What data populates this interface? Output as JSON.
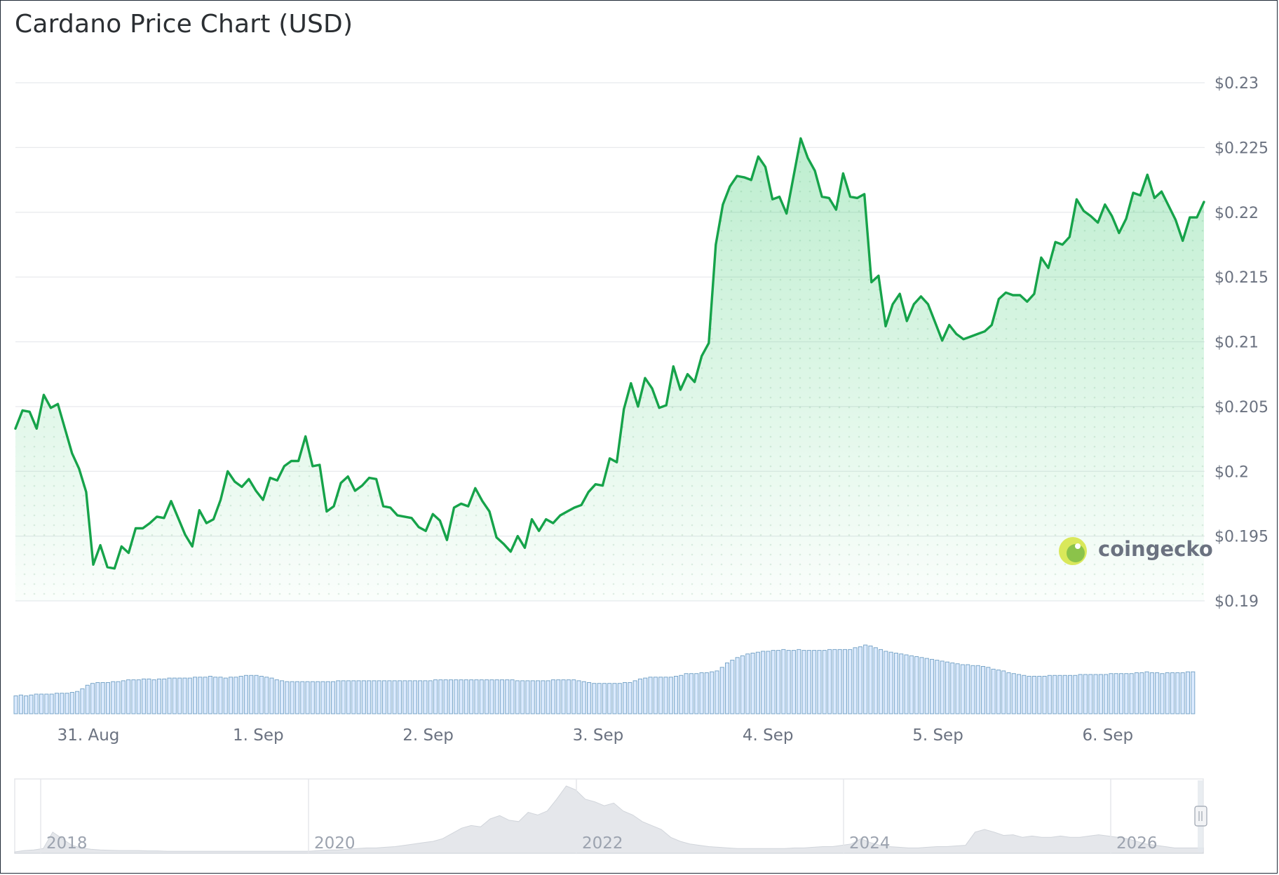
{
  "title": "Cardano Price Chart (USD)",
  "watermark": "coingecko",
  "colors": {
    "line": "#16a34a",
    "area": "#22c55e",
    "volume_fill": "#dbeafe",
    "volume_stroke": "#7aa6c8",
    "navigator_fill": "#e5e7eb",
    "grid": "#e8eaed"
  },
  "chart_data": {
    "type": "line",
    "title": "Cardano Price Chart (USD)",
    "x_tick_labels": [
      "31. Aug",
      "1. Sep",
      "2. Sep",
      "3. Sep",
      "4. Sep",
      "5. Sep",
      "6. Sep"
    ],
    "y_tick_labels": [
      "$0.23",
      "$0.225",
      "$0.22",
      "$0.215",
      "$0.21",
      "$0.205",
      "$0.2",
      "$0.195",
      "$0.19"
    ],
    "ylim": [
      0.19,
      0.23
    ],
    "y_axis_position": "right",
    "grid": true,
    "x_start": "2025-08-30T13:00",
    "x_end": "2025-09-06T11:00",
    "series": [
      {
        "values": [
          0.2033,
          0.2047,
          0.2046,
          0.2033,
          0.2059,
          0.2049,
          0.2052,
          0.2033,
          0.2014,
          0.2002,
          0.1984,
          0.1928,
          0.1943,
          0.1926,
          0.1925,
          0.1942,
          0.1937,
          0.1956,
          0.1956,
          0.196,
          0.1965,
          0.1964,
          0.1977,
          0.1964,
          0.1951,
          0.1942,
          0.197,
          0.196,
          0.1963,
          0.1978,
          0.2,
          0.1992,
          0.1988,
          0.1994,
          0.1985,
          0.1978,
          0.1995,
          0.1993,
          0.2004,
          0.2008,
          0.2008,
          0.2027,
          0.2004,
          0.2005,
          0.1969,
          0.1973,
          0.1991,
          0.1996,
          0.1985,
          0.1989,
          0.1995,
          0.1994,
          0.1973,
          0.1972,
          0.1966,
          0.1965,
          0.1964,
          0.1957,
          0.1954,
          0.1967,
          0.1962,
          0.1947,
          0.1972,
          0.1975,
          0.1973,
          0.1987,
          0.1977,
          0.1969,
          0.1949,
          0.1944,
          0.1938,
          0.195,
          0.1941,
          0.1963,
          0.1954,
          0.1963,
          0.196,
          0.1966,
          0.1969,
          0.1972,
          0.1974,
          0.1984,
          0.199,
          0.1989,
          0.201,
          0.2007,
          0.2048,
          0.2068,
          0.205,
          0.2072,
          0.2064,
          0.2049,
          0.2051,
          0.2081,
          0.2063,
          0.2075,
          0.2069,
          0.2089,
          0.2099,
          0.2175,
          0.2206,
          0.222,
          0.2228,
          0.2227,
          0.2225,
          0.2243,
          0.2235,
          0.221,
          0.2212,
          0.2199,
          0.2228,
          0.2257,
          0.2242,
          0.2232,
          0.2212,
          0.2211,
          0.2202,
          0.223,
          0.2212,
          0.2211,
          0.2214,
          0.2146,
          0.2151,
          0.2112,
          0.2129,
          0.2137,
          0.2116,
          0.2129,
          0.2135,
          0.2129,
          0.2115,
          0.2101,
          0.2113,
          0.2106,
          0.2102,
          0.2104,
          0.2106,
          0.2108,
          0.2113,
          0.2133,
          0.2138,
          0.2136,
          0.2136,
          0.2131,
          0.2137,
          0.2165,
          0.2157,
          0.2177,
          0.2175,
          0.2181,
          0.221,
          0.2201,
          0.2197,
          0.2192,
          0.2206,
          0.2197,
          0.2184,
          0.2195,
          0.2215,
          0.2213,
          0.2229,
          0.2211,
          0.2216,
          0.2205,
          0.2194,
          0.2178,
          0.2196,
          0.2196,
          0.2208
        ]
      }
    ],
    "volume": {
      "values": [
        2.0,
        2.1,
        2.0,
        2.1,
        2.2,
        2.2,
        2.2,
        2.2,
        2.3,
        2.3,
        2.3,
        2.4,
        2.5,
        2.8,
        3.2,
        3.4,
        3.5,
        3.5,
        3.5,
        3.6,
        3.6,
        3.7,
        3.8,
        3.8,
        3.8,
        3.9,
        3.9,
        3.8,
        3.9,
        3.9,
        4.0,
        4.0,
        4.0,
        4.0,
        4.0,
        4.1,
        4.1,
        4.1,
        4.2,
        4.1,
        4.1,
        4.0,
        4.1,
        4.1,
        4.2,
        4.3,
        4.3,
        4.3,
        4.2,
        4.1,
        4.0,
        3.8,
        3.7,
        3.6,
        3.6,
        3.6,
        3.6,
        3.6,
        3.6,
        3.6,
        3.6,
        3.6,
        3.6,
        3.7,
        3.7,
        3.7,
        3.7,
        3.7,
        3.7,
        3.7,
        3.7,
        3.7,
        3.7,
        3.7,
        3.7,
        3.7,
        3.7,
        3.7,
        3.7,
        3.7,
        3.7,
        3.7,
        3.8,
        3.8,
        3.8,
        3.8,
        3.8,
        3.8,
        3.8,
        3.8,
        3.8,
        3.8,
        3.8,
        3.8,
        3.8,
        3.8,
        3.8,
        3.8,
        3.7,
        3.7,
        3.7,
        3.7,
        3.7,
        3.7,
        3.7,
        3.8,
        3.8,
        3.8,
        3.8,
        3.8,
        3.7,
        3.6,
        3.5,
        3.4,
        3.4,
        3.4,
        3.4,
        3.4,
        3.4,
        3.5,
        3.5,
        3.7,
        3.9,
        4.0,
        4.1,
        4.1,
        4.1,
        4.1,
        4.1,
        4.2,
        4.3,
        4.5,
        4.5,
        4.5,
        4.6,
        4.6,
        4.7,
        4.8,
        5.2,
        5.7,
        6.0,
        6.3,
        6.5,
        6.7,
        6.8,
        6.9,
        7.0,
        7.0,
        7.1,
        7.1,
        7.2,
        7.1,
        7.1,
        7.2,
        7.1,
        7.1,
        7.1,
        7.1,
        7.1,
        7.2,
        7.2,
        7.2,
        7.2,
        7.2,
        7.4,
        7.5,
        7.7,
        7.6,
        7.4,
        7.2,
        7.0,
        6.9,
        6.8,
        6.7,
        6.6,
        6.5,
        6.4,
        6.3,
        6.2,
        6.1,
        6.0,
        5.9,
        5.8,
        5.7,
        5.6,
        5.5,
        5.5,
        5.4,
        5.4,
        5.3,
        5.2,
        5.0,
        4.9,
        4.8,
        4.6,
        4.5,
        4.4,
        4.3,
        4.2,
        4.2,
        4.2,
        4.2,
        4.3,
        4.3,
        4.3,
        4.3,
        4.3,
        4.3,
        4.4,
        4.4,
        4.4,
        4.4,
        4.4,
        4.4,
        4.5,
        4.5,
        4.5,
        4.5,
        4.5,
        4.6,
        4.6,
        4.7,
        4.6,
        4.6,
        4.5,
        4.6,
        4.6,
        4.6,
        4.6,
        4.7,
        4.7
      ]
    },
    "navigator": {
      "tick_labels": [
        "2018",
        "2020",
        "2022",
        "2024",
        "2026"
      ],
      "values": [
        0,
        0.02,
        0.03,
        0.05,
        0.3,
        0.2,
        0.1,
        0.06,
        0.04,
        0.03,
        0.025,
        0.02,
        0.02,
        0.02,
        0.015,
        0.015,
        0.01,
        0.01,
        0.01,
        0.01,
        0.01,
        0.01,
        0.01,
        0.01,
        0.01,
        0.01,
        0.01,
        0.01,
        0.01,
        0.01,
        0.01,
        0.01,
        0.02,
        0.03,
        0.03,
        0.04,
        0.05,
        0.06,
        0.06,
        0.07,
        0.08,
        0.1,
        0.12,
        0.14,
        0.16,
        0.2,
        0.28,
        0.36,
        0.4,
        0.38,
        0.5,
        0.55,
        0.48,
        0.46,
        0.6,
        0.56,
        0.62,
        0.8,
        1.0,
        0.94,
        0.8,
        0.76,
        0.7,
        0.74,
        0.62,
        0.56,
        0.46,
        0.4,
        0.34,
        0.22,
        0.16,
        0.12,
        0.1,
        0.08,
        0.07,
        0.06,
        0.05,
        0.05,
        0.05,
        0.05,
        0.05,
        0.05,
        0.06,
        0.06,
        0.07,
        0.08,
        0.08,
        0.1,
        0.12,
        0.2,
        0.14,
        0.1,
        0.08,
        0.07,
        0.06,
        0.06,
        0.07,
        0.08,
        0.08,
        0.09,
        0.1,
        0.3,
        0.34,
        0.3,
        0.25,
        0.26,
        0.22,
        0.24,
        0.22,
        0.22,
        0.24,
        0.22,
        0.22,
        0.24,
        0.26,
        0.24,
        0.22,
        0.2,
        0.16,
        0.12,
        0.1,
        0.08,
        0.06,
        0.06,
        0.06,
        0.06
      ]
    }
  }
}
